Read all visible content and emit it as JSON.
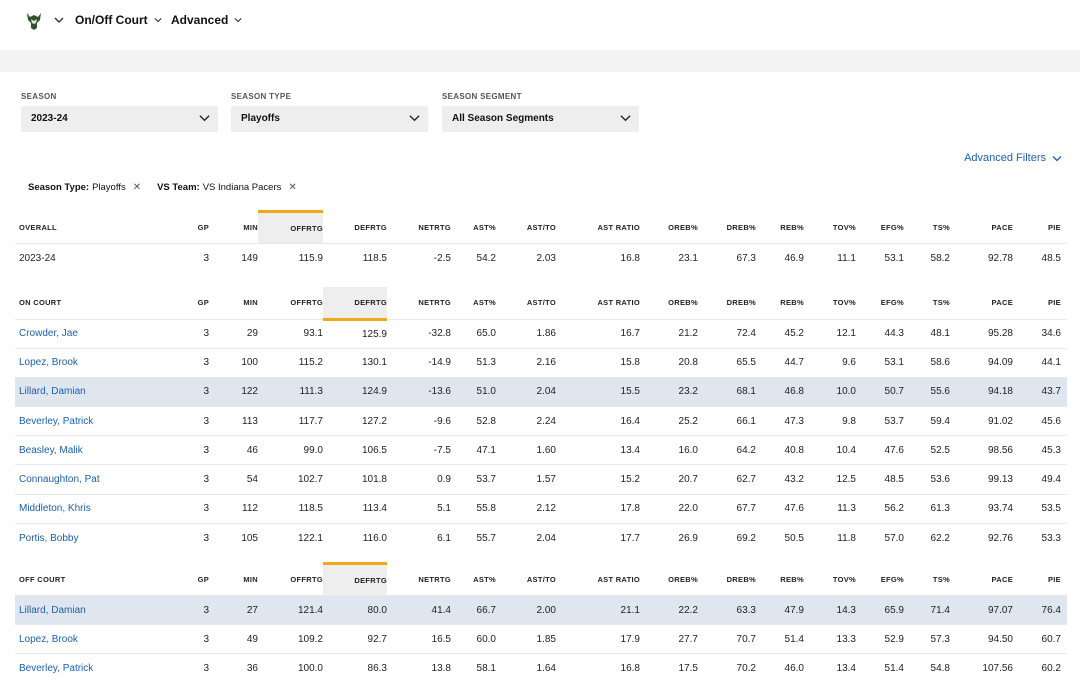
{
  "nav": {
    "items": [
      "On/Off Court",
      "Advanced"
    ]
  },
  "filters": [
    {
      "label": "SEASON",
      "value": "2023-24"
    },
    {
      "label": "SEASON TYPE",
      "value": "Playoffs"
    },
    {
      "label": "SEASON SEGMENT",
      "value": "All Season Segments"
    }
  ],
  "advanced_filters": "Advanced Filters",
  "chips": [
    {
      "key": "Season Type:",
      "value": "Playoffs"
    },
    {
      "key": "VS Team:",
      "value": "VS Indiana Pacers"
    }
  ],
  "columns": [
    "GP",
    "MIN",
    "OFFRTG",
    "DEFRTG",
    "NETRTG",
    "AST%",
    "AST/TO",
    "AST RATIO",
    "OREB%",
    "DREB%",
    "REB%",
    "TOV%",
    "EFG%",
    "TS%",
    "PACE",
    "PIE"
  ],
  "sections": [
    {
      "title": "OVERALL",
      "highlight_col": 3,
      "rows": [
        {
          "name": "2023-24",
          "link": false,
          "selected": false,
          "values": [
            "3",
            "149",
            "115.9",
            "118.5",
            "-2.5",
            "54.2",
            "2.03",
            "16.8",
            "23.1",
            "67.3",
            "46.9",
            "11.1",
            "53.1",
            "58.2",
            "92.78",
            "48.5"
          ]
        }
      ]
    },
    {
      "title": "ON COURT",
      "highlight_col": 4,
      "rows": [
        {
          "name": "Crowder, Jae",
          "link": true,
          "selected": false,
          "values": [
            "3",
            "29",
            "93.1",
            "125.9",
            "-32.8",
            "65.0",
            "1.86",
            "16.7",
            "21.2",
            "72.4",
            "45.2",
            "12.1",
            "44.3",
            "48.1",
            "95.28",
            "34.6"
          ]
        },
        {
          "name": "Lopez, Brook",
          "link": true,
          "selected": false,
          "values": [
            "3",
            "100",
            "115.2",
            "130.1",
            "-14.9",
            "51.3",
            "2.16",
            "15.8",
            "20.8",
            "65.5",
            "44.7",
            "9.6",
            "53.1",
            "58.6",
            "94.09",
            "44.1"
          ]
        },
        {
          "name": "Lillard, Damian",
          "link": true,
          "selected": true,
          "values": [
            "3",
            "122",
            "111.3",
            "124.9",
            "-13.6",
            "51.0",
            "2.04",
            "15.5",
            "23.2",
            "68.1",
            "46.8",
            "10.0",
            "50.7",
            "55.6",
            "94.18",
            "43.7"
          ]
        },
        {
          "name": "Beverley, Patrick",
          "link": true,
          "selected": false,
          "values": [
            "3",
            "113",
            "117.7",
            "127.2",
            "-9.6",
            "52.8",
            "2.24",
            "16.4",
            "25.2",
            "66.1",
            "47.3",
            "9.8",
            "53.7",
            "59.4",
            "91.02",
            "45.6"
          ]
        },
        {
          "name": "Beasley, Malik",
          "link": true,
          "selected": false,
          "values": [
            "3",
            "46",
            "99.0",
            "106.5",
            "-7.5",
            "47.1",
            "1.60",
            "13.4",
            "16.0",
            "64.2",
            "40.8",
            "10.4",
            "47.6",
            "52.5",
            "98.56",
            "45.3"
          ]
        },
        {
          "name": "Connaughton, Pat",
          "link": true,
          "selected": false,
          "values": [
            "3",
            "54",
            "102.7",
            "101.8",
            "0.9",
            "53.7",
            "1.57",
            "15.2",
            "20.7",
            "62.7",
            "43.2",
            "12.5",
            "48.5",
            "53.6",
            "99.13",
            "49.4"
          ]
        },
        {
          "name": "Middleton, Khris",
          "link": true,
          "selected": false,
          "values": [
            "3",
            "112",
            "118.5",
            "113.4",
            "5.1",
            "55.8",
            "2.12",
            "17.8",
            "22.0",
            "67.7",
            "47.6",
            "11.3",
            "56.2",
            "61.3",
            "93.74",
            "53.5"
          ]
        },
        {
          "name": "Portis, Bobby",
          "link": true,
          "selected": false,
          "values": [
            "3",
            "105",
            "122.1",
            "116.0",
            "6.1",
            "55.7",
            "2.04",
            "17.7",
            "26.9",
            "69.2",
            "50.5",
            "11.8",
            "57.0",
            "62.2",
            "92.76",
            "53.3"
          ]
        }
      ]
    },
    {
      "title": "OFF COURT",
      "highlight_col": 4,
      "rows": [
        {
          "name": "Lillard, Damian",
          "link": true,
          "selected": true,
          "values": [
            "3",
            "27",
            "121.4",
            "80.0",
            "41.4",
            "66.7",
            "2.00",
            "21.1",
            "22.2",
            "63.3",
            "47.9",
            "14.3",
            "65.9",
            "71.4",
            "97.07",
            "76.4"
          ]
        },
        {
          "name": "Lopez, Brook",
          "link": true,
          "selected": false,
          "values": [
            "3",
            "49",
            "109.2",
            "92.7",
            "16.5",
            "60.0",
            "1.85",
            "17.9",
            "27.7",
            "70.7",
            "51.4",
            "13.3",
            "52.9",
            "57.3",
            "94.50",
            "60.7"
          ]
        },
        {
          "name": "Beverley, Patrick",
          "link": true,
          "selected": false,
          "values": [
            "3",
            "36",
            "100.0",
            "86.3",
            "13.8",
            "58.1",
            "1.64",
            "16.8",
            "17.5",
            "70.2",
            "46.0",
            "13.4",
            "51.4",
            "54.8",
            "107.56",
            "60.2"
          ]
        }
      ]
    }
  ]
}
